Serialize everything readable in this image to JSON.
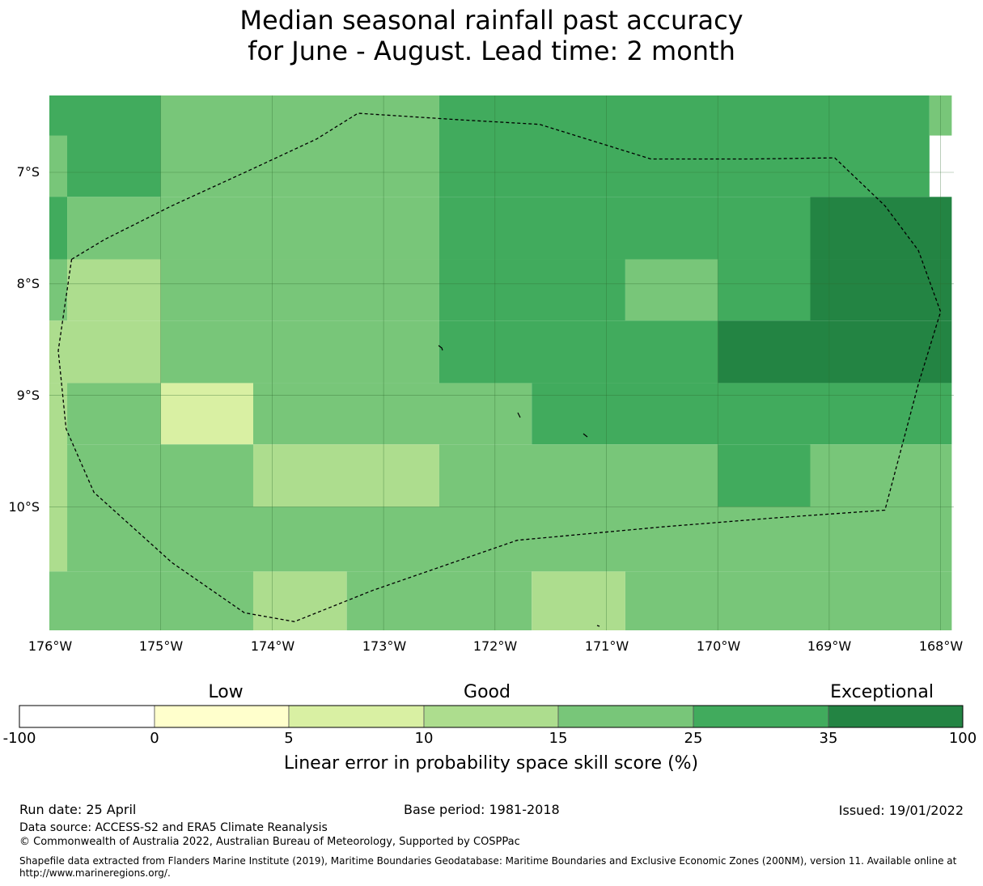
{
  "title": {
    "line1": "Median seasonal rainfall past accuracy",
    "line2": "for June - August. Lead time: 2 month"
  },
  "map": {
    "lon_labels": [
      "176°W",
      "175°W",
      "174°W",
      "173°W",
      "172°W",
      "171°W",
      "170°W",
      "169°W",
      "168°W"
    ],
    "lat_labels": [
      "7°S",
      "8°S",
      "9°S",
      "10°S"
    ],
    "colors": {
      "c5_10": "#d9f0a3",
      "c10_15": "#addd8e",
      "c15_25": "#78c679",
      "c25_35": "#41ab5d",
      "c35_100": "#238443"
    },
    "cells": [
      {
        "c": "c25_35",
        "x": [
          -176,
          -175
        ],
        "y": [
          -6.3,
          -7.22
        ]
      },
      {
        "c": "c15_25",
        "x": [
          -176,
          -175.84
        ],
        "y": [
          -6.67,
          -7.22
        ]
      },
      {
        "c": "c15_25",
        "x": [
          -175,
          -172.5
        ],
        "y": [
          -6.3,
          -7.22
        ]
      },
      {
        "c": "c25_35",
        "x": [
          -172.5,
          -168.1
        ],
        "y": [
          -6.3,
          -7.22
        ]
      },
      {
        "c": "c15_25",
        "x": [
          -168.1,
          -167.9
        ],
        "y": [
          -6.3,
          -6.67
        ]
      },
      {
        "c": "c25_35",
        "x": [
          -176,
          -175.84
        ],
        "y": [
          -7.22,
          -7.78
        ]
      },
      {
        "c": "c15_25",
        "x": [
          -175.84,
          -172.5
        ],
        "y": [
          -7.22,
          -7.78
        ]
      },
      {
        "c": "c25_35",
        "x": [
          -172.5,
          -169.17
        ],
        "y": [
          -7.22,
          -7.78
        ]
      },
      {
        "c": "c35_100",
        "x": [
          -169.17,
          -167.9
        ],
        "y": [
          -7.22,
          -7.78
        ]
      },
      {
        "c": "c15_25",
        "x": [
          -176,
          -175.84
        ],
        "y": [
          -7.78,
          -8.33
        ]
      },
      {
        "c": "c10_15",
        "x": [
          -175.84,
          -175
        ],
        "y": [
          -7.78,
          -8.33
        ]
      },
      {
        "c": "c15_25",
        "x": [
          -175,
          -172.5
        ],
        "y": [
          -7.78,
          -8.33
        ]
      },
      {
        "c": "c25_35",
        "x": [
          -172.5,
          -170.83
        ],
        "y": [
          -7.78,
          -8.33
        ]
      },
      {
        "c": "c15_25",
        "x": [
          -170.83,
          -170
        ],
        "y": [
          -7.78,
          -8.33
        ]
      },
      {
        "c": "c25_35",
        "x": [
          -170,
          -169.17
        ],
        "y": [
          -7.78,
          -8.33
        ]
      },
      {
        "c": "c35_100",
        "x": [
          -169.17,
          -167.9
        ],
        "y": [
          -7.78,
          -8.33
        ]
      },
      {
        "c": "c10_15",
        "x": [
          -176,
          -175
        ],
        "y": [
          -8.33,
          -8.89
        ]
      },
      {
        "c": "c15_25",
        "x": [
          -175,
          -172.5
        ],
        "y": [
          -8.33,
          -8.89
        ]
      },
      {
        "c": "c25_35",
        "x": [
          -172.5,
          -170
        ],
        "y": [
          -8.33,
          -8.89
        ]
      },
      {
        "c": "c35_100",
        "x": [
          -170,
          -167.9
        ],
        "y": [
          -8.33,
          -8.89
        ]
      },
      {
        "c": "c10_15",
        "x": [
          -176,
          -175.84
        ],
        "y": [
          -8.89,
          -10.58
        ]
      },
      {
        "c": "c15_25",
        "x": [
          -175.84,
          -175
        ],
        "y": [
          -8.89,
          -9.44
        ]
      },
      {
        "c": "c5_10",
        "x": [
          -175,
          -174.17
        ],
        "y": [
          -8.89,
          -9.44
        ]
      },
      {
        "c": "c15_25",
        "x": [
          -174.17,
          -171.67
        ],
        "y": [
          -8.89,
          -9.44
        ]
      },
      {
        "c": "c25_35",
        "x": [
          -171.67,
          -167.9
        ],
        "y": [
          -8.89,
          -9.44
        ]
      },
      {
        "c": "c15_25",
        "x": [
          -175.84,
          -174.17
        ],
        "y": [
          -9.44,
          -10
        ]
      },
      {
        "c": "c10_15",
        "x": [
          -174.17,
          -172.5
        ],
        "y": [
          -9.44,
          -10
        ]
      },
      {
        "c": "c15_25",
        "x": [
          -172.5,
          -170
        ],
        "y": [
          -9.44,
          -10
        ]
      },
      {
        "c": "c25_35",
        "x": [
          -170,
          -169.17
        ],
        "y": [
          -9.44,
          -10
        ]
      },
      {
        "c": "c15_25",
        "x": [
          -169.17,
          -167.9
        ],
        "y": [
          -9.44,
          -10
        ]
      },
      {
        "c": "c15_25",
        "x": [
          -175.84,
          -167.9
        ],
        "y": [
          -10,
          -10.58
        ]
      },
      {
        "c": "c15_25",
        "x": [
          -176,
          -174.17
        ],
        "y": [
          -10.58,
          -11.11
        ]
      },
      {
        "c": "c10_15",
        "x": [
          -174.17,
          -173.33
        ],
        "y": [
          -10.58,
          -11.11
        ]
      },
      {
        "c": "c15_25",
        "x": [
          -173.33,
          -171.67
        ],
        "y": [
          -10.58,
          -11.11
        ]
      },
      {
        "c": "c10_15",
        "x": [
          -171.67,
          -170.83
        ],
        "y": [
          -10.58,
          -11.11
        ]
      },
      {
        "c": "c15_25",
        "x": [
          -170.83,
          -167.9
        ],
        "y": [
          -10.58,
          -11.11
        ]
      }
    ],
    "boundary": [
      [
        -175.8,
        -7.78
      ],
      [
        -175.5,
        -7.6
      ],
      [
        -174.9,
        -7.3
      ],
      [
        -174.2,
        -6.98
      ],
      [
        -173.6,
        -6.7
      ],
      [
        -173.23,
        -6.47
      ],
      [
        -172.3,
        -6.53
      ],
      [
        -171.6,
        -6.57
      ],
      [
        -170.6,
        -6.88
      ],
      [
        -169.7,
        -6.88
      ],
      [
        -168.95,
        -6.87
      ],
      [
        -168.5,
        -7.3
      ],
      [
        -168.2,
        -7.7
      ],
      [
        -168.0,
        -8.25
      ],
      [
        -168.2,
        -8.9
      ],
      [
        -168.5,
        -10.03
      ],
      [
        -169.5,
        -10.1
      ],
      [
        -170.5,
        -10.18
      ],
      [
        -171.8,
        -10.3
      ],
      [
        -173.1,
        -10.75
      ],
      [
        -173.8,
        -11.03
      ],
      [
        -174.25,
        -10.95
      ],
      [
        -174.9,
        -10.5
      ],
      [
        -175.6,
        -9.87
      ],
      [
        -175.85,
        -9.3
      ],
      [
        -175.92,
        -8.6
      ],
      [
        -175.8,
        -7.78
      ]
    ]
  },
  "colorbar": {
    "words": [
      "Low",
      "Good",
      "Exceptional"
    ],
    "ticks": [
      "-100",
      "0",
      "5",
      "10",
      "15",
      "25",
      "35",
      "100"
    ],
    "colors": [
      "#ffffff",
      "#ffffcc",
      "#d9f0a3",
      "#addd8e",
      "#78c679",
      "#41ab5d",
      "#238443"
    ],
    "label": "Linear error in probability space skill score (%)"
  },
  "footer": {
    "run_date": "Run date: 25 April",
    "base_period": "Base period: 1981-2018",
    "issued": "Issued: 19/01/2022",
    "data_source": "Data source: ACCESS-S2 and ERA5 Climate Reanalysis",
    "copyright": "© Commonwealth of Australia 2022, Australian Bureau of Meteorology, Supported by COSPPac",
    "shapefile_line1": "Shapefile data extracted from Flanders Marine Institute (2019), Maritime Boundaries Geodatabase: Maritime Boundaries and Exclusive Economic Zones (200NM), version 11. Available online at",
    "shapefile_line2": "http://www.marineregions.org/."
  }
}
